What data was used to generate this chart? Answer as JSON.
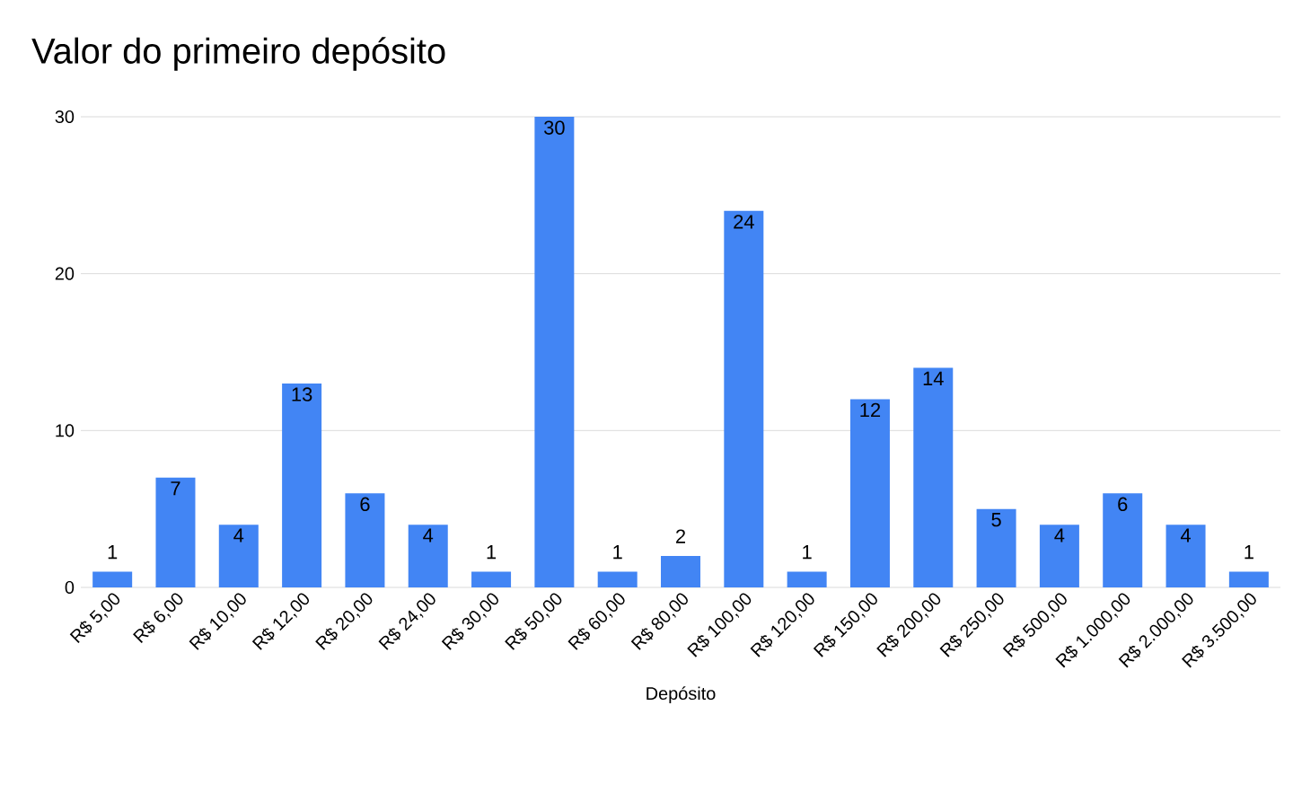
{
  "chart_data": {
    "type": "bar",
    "title": "Valor do primeiro depósito",
    "xlabel": "Depósito",
    "categories": [
      "R$ 5,00",
      "R$ 6,00",
      "R$ 10,00",
      "R$ 12,00",
      "R$ 20,00",
      "R$ 24,00",
      "R$ 30,00",
      "R$ 50,00",
      "R$ 60,00",
      "R$ 80,00",
      "R$ 100,00",
      "R$ 120,00",
      "R$ 150,00",
      "R$ 200,00",
      "R$ 250,00",
      "R$ 500,00",
      "R$ 1.000,00",
      "R$ 2.000,00",
      "R$ 3.500,00"
    ],
    "values": [
      1,
      7,
      4,
      13,
      6,
      4,
      1,
      30,
      1,
      2,
      24,
      1,
      12,
      14,
      5,
      4,
      6,
      4,
      1
    ],
    "color": "#4285f4",
    "ylim": [
      0,
      30
    ],
    "yticks": [
      0,
      10,
      20,
      30
    ],
    "grid": "y",
    "data_labels": true
  }
}
